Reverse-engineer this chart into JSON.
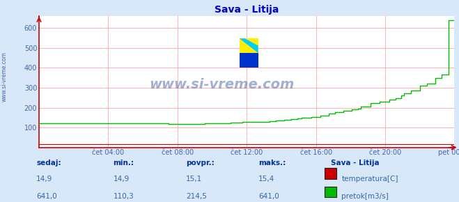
{
  "title": "Sava - Litija",
  "bg_color": "#d8e8f8",
  "plot_bg_color": "#ffffff",
  "grid_color": "#ffb3b3",
  "xlabel_color": "#4466aa",
  "ylabel_color": "#4466aa",
  "title_color": "#0000cc",
  "watermark": "www.si-vreme.com",
  "watermark_color": "#1a3a8a",
  "xlim": [
    0,
    288
  ],
  "ylim": [
    0,
    660
  ],
  "yticks": [
    100,
    200,
    300,
    400,
    500,
    600
  ],
  "xtick_labels": [
    "čet 04:00",
    "čet 08:00",
    "čet 12:00",
    "čet 16:00",
    "čet 20:00",
    "pet 00:00"
  ],
  "xtick_positions": [
    48,
    96,
    144,
    192,
    240,
    288
  ],
  "temp_color": "#cc0000",
  "flow_color": "#00bb00",
  "legend_station": "Sava - Litija",
  "legend_temp": "temperatura[C]",
  "legend_flow": "pretok[m3/s]",
  "bottom_text_color": "#3366aa",
  "bottom_label_color": "#003399",
  "sidebar_text": "www.si-vreme.com",
  "sidebar_color": "#4466aa",
  "axis_color": "#cc0000",
  "temp_vals": [
    "14,9",
    "14,9",
    "15,1",
    "15,4"
  ],
  "flow_vals": [
    "641,0",
    "110,3",
    "214,5",
    "641,0"
  ],
  "headers": [
    "sedaj:",
    "min.:",
    "povpr.:",
    "maks.:"
  ]
}
